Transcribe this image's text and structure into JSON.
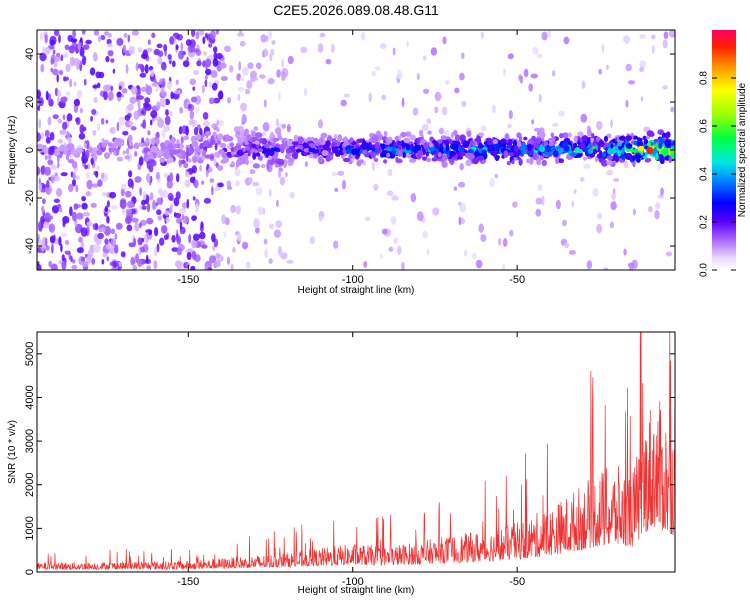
{
  "title": "C2E5.2026.089.08.48.G11",
  "chart_data": [
    {
      "type": "heatmap",
      "xlabel": "Height of straight line (km)",
      "ylabel": "Frequency (Hz)",
      "xlim": [
        -196,
        -2
      ],
      "ylim": [
        -50,
        50
      ],
      "x_ticks": [
        -150,
        -100,
        -50
      ],
      "y_ticks": [
        -40,
        -20,
        0,
        20,
        40
      ],
      "colorbar": {
        "label": "Normalized spectral amplitude",
        "range": [
          0,
          1
        ],
        "ticks": [
          0.0,
          0.2,
          0.4,
          0.6,
          0.8
        ]
      },
      "trend_x": [
        -196,
        -150,
        -140,
        -120,
        -100,
        -80,
        -60,
        -40,
        -30,
        -20,
        -10,
        -2
      ],
      "trend_amplitude": [
        0.1,
        0.15,
        0.22,
        0.3,
        0.38,
        0.42,
        0.45,
        0.48,
        0.5,
        0.6,
        0.9,
        0.85
      ]
    },
    {
      "type": "line",
      "xlabel": "Height of straight line (km)",
      "ylabel": "SNR (10 * v/v)",
      "xlim": [
        -196,
        -2
      ],
      "ylim": [
        0,
        5500
      ],
      "x_ticks": [
        -150,
        -100,
        -50
      ],
      "y_ticks": [
        0,
        1000,
        2000,
        3000,
        4000,
        5000
      ],
      "envelope_x": [
        -196,
        -150,
        -135,
        -120,
        -110,
        -100,
        -90,
        -80,
        -70,
        -60,
        -50,
        -40,
        -35,
        -30,
        -25,
        -20,
        -15,
        -12,
        -10,
        -8,
        -5,
        -2
      ],
      "envelope_y": [
        220,
        260,
        350,
        450,
        550,
        650,
        600,
        700,
        850,
        950,
        1150,
        1500,
        1750,
        2050,
        2350,
        2450,
        2300,
        3200,
        3900,
        4100,
        3700,
        3300
      ],
      "color": "#ee3333"
    }
  ]
}
